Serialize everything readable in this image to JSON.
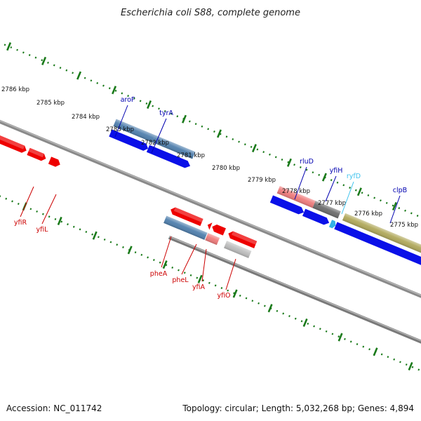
{
  "title": "Escherichia coli S88, complete genome",
  "footer": {
    "accession": "Accession: NC_011742",
    "summary": "Topology: circular; Length: 5,032,268 bp; Genes: 4,894"
  },
  "colors": {
    "blue_gene": "#0a10e8",
    "steelblue_gene": "#4f7fad",
    "red_gene": "#ee0000",
    "pink_gene": "#ef7b7b",
    "grey_gene": "#6c6c6c",
    "lightgrey_gene": "#bdbdbd",
    "olive_gene": "#b0a85a",
    "cyan_gene": "#33b2e6",
    "dots": "#1a7a1a",
    "label_blue": "#0000b0",
    "label_red": "#cc0000",
    "label_cyan": "#3fc3ee"
  },
  "kbp_ticks": [
    {
      "label": "2786 kbp"
    },
    {
      "label": "2785 kbp"
    },
    {
      "label": "2784 kbp"
    },
    {
      "label": "2783 kbp"
    },
    {
      "label": "2782 kbp"
    },
    {
      "label": "2781 kbp"
    },
    {
      "label": "2780 kbp"
    },
    {
      "label": "2779 kbp"
    },
    {
      "label": "2778 kbp"
    },
    {
      "label": "2777 kbp"
    },
    {
      "label": "2776 kbp"
    },
    {
      "label": "2775 kbp"
    }
  ],
  "gene_labels": [
    {
      "name": "aroF",
      "color": "label_blue"
    },
    {
      "name": "tyrA",
      "color": "label_blue"
    },
    {
      "name": "rluD",
      "color": "label_blue"
    },
    {
      "name": "yfiH",
      "color": "label_blue"
    },
    {
      "name": "ryfD",
      "color": "label_cyan"
    },
    {
      "name": "clpB",
      "color": "label_blue"
    },
    {
      "name": "yfiR",
      "color": "label_red"
    },
    {
      "name": "yfiL",
      "color": "label_red"
    },
    {
      "name": "pheA",
      "color": "label_red"
    },
    {
      "name": "pheL",
      "color": "label_red"
    },
    {
      "name": "yfiA",
      "color": "label_red"
    },
    {
      "name": "yfiO",
      "color": "label_red"
    }
  ]
}
